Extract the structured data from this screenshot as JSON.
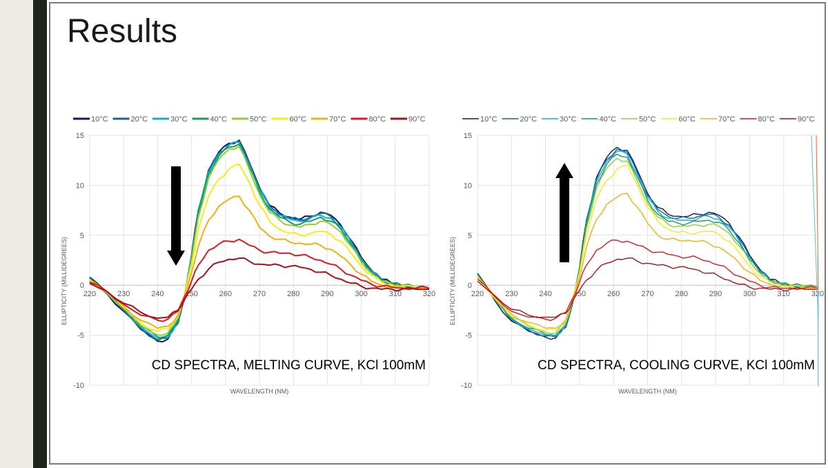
{
  "slide": {
    "title": "Results"
  },
  "chart_data": [
    {
      "type": "line",
      "id": "melting",
      "title": "",
      "annotation": "CD SPECTRA, MELTING CURVE, KCl 100mM",
      "arrow": "down",
      "xlabel": "WAVELENGTH (NM)",
      "ylabel": "ELLIPTICITY (MILLIDEGREES)",
      "xlim": [
        220,
        320
      ],
      "ylim": [
        -10,
        15
      ],
      "xticks": [
        220,
        230,
        240,
        250,
        260,
        270,
        280,
        290,
        300,
        310,
        320
      ],
      "yticks": [
        -10,
        -5,
        0,
        5,
        10,
        15
      ],
      "legend_position": "top",
      "x": [
        220,
        225,
        230,
        235,
        240,
        243,
        246,
        248,
        250,
        252,
        255,
        258,
        261,
        264,
        267,
        270,
        273,
        276,
        279,
        282,
        285,
        288,
        291,
        294,
        297,
        300,
        303,
        306,
        309,
        312,
        316,
        320
      ],
      "series": [
        {
          "name": "10°C",
          "color": "#0d1a5c",
          "values": [
            0.8,
            -0.8,
            -2.6,
            -4.4,
            -5.6,
            -5.4,
            -3.8,
            -1.0,
            3.0,
            7.5,
            11.5,
            13.3,
            14.2,
            14.5,
            12.3,
            9.8,
            8.0,
            7.2,
            6.8,
            6.6,
            6.9,
            7.3,
            7.0,
            6.0,
            4.5,
            2.8,
            1.5,
            0.6,
            0.2,
            0.0,
            -0.2,
            -0.3
          ]
        },
        {
          "name": "20°C",
          "color": "#1262a8",
          "values": [
            0.7,
            -0.8,
            -2.5,
            -4.3,
            -5.5,
            -5.3,
            -3.7,
            -1.0,
            2.9,
            7.4,
            11.4,
            13.2,
            14.1,
            14.4,
            12.2,
            9.7,
            7.9,
            7.1,
            6.7,
            6.5,
            6.8,
            7.2,
            6.9,
            5.9,
            4.4,
            2.7,
            1.4,
            0.6,
            0.2,
            0.0,
            -0.2,
            -0.3
          ]
        },
        {
          "name": "30°C",
          "color": "#12a9de",
          "values": [
            0.7,
            -0.7,
            -2.4,
            -4.2,
            -5.4,
            -5.2,
            -3.6,
            -0.9,
            2.8,
            7.3,
            11.3,
            13.1,
            14.0,
            14.3,
            12.1,
            9.6,
            7.8,
            7.0,
            6.6,
            6.4,
            6.7,
            7.0,
            6.7,
            5.8,
            4.3,
            2.6,
            1.4,
            0.5,
            0.2,
            0.0,
            -0.2,
            -0.3
          ]
        },
        {
          "name": "40°C",
          "color": "#14a050",
          "values": [
            0.6,
            -0.7,
            -2.4,
            -4.1,
            -5.2,
            -5.0,
            -3.5,
            -0.9,
            2.7,
            7.1,
            11.1,
            12.9,
            13.8,
            14.1,
            11.9,
            9.4,
            7.6,
            6.8,
            6.3,
            6.1,
            6.4,
            6.8,
            6.4,
            5.6,
            4.1,
            2.5,
            1.3,
            0.5,
            0.2,
            0.0,
            -0.2,
            -0.3
          ]
        },
        {
          "name": "50°C",
          "color": "#8ccf3a",
          "values": [
            0.6,
            -0.7,
            -2.3,
            -4.0,
            -5.0,
            -4.8,
            -3.3,
            -0.9,
            2.5,
            6.8,
            10.7,
            12.6,
            13.6,
            13.9,
            11.6,
            9.1,
            7.3,
            6.5,
            6.0,
            5.8,
            6.1,
            6.4,
            6.1,
            5.3,
            3.9,
            2.3,
            1.2,
            0.4,
            0.1,
            0.0,
            -0.2,
            -0.3
          ]
        },
        {
          "name": "60°C",
          "color": "#f6ec19",
          "values": [
            0.5,
            -0.7,
            -2.2,
            -3.8,
            -4.6,
            -4.4,
            -3.1,
            -0.9,
            2.0,
            5.6,
            8.9,
            10.6,
            11.6,
            12.1,
            10.3,
            8.0,
            6.4,
            5.6,
            5.2,
            5.0,
            5.2,
            5.4,
            5.1,
            4.4,
            3.2,
            1.9,
            1.0,
            0.3,
            0.0,
            -0.1,
            -0.2,
            -0.3
          ]
        },
        {
          "name": "70°C",
          "color": "#f4b00e",
          "values": [
            0.4,
            -0.7,
            -2.1,
            -3.5,
            -4.3,
            -4.1,
            -3.0,
            -1.0,
            1.3,
            3.9,
            6.5,
            7.9,
            8.6,
            8.9,
            7.5,
            5.8,
            4.9,
            4.6,
            4.3,
            4.2,
            4.1,
            4.0,
            3.6,
            2.9,
            2.0,
            1.1,
            0.4,
            0.0,
            -0.2,
            -0.2,
            -0.3,
            -0.3
          ]
        },
        {
          "name": "80°C",
          "color": "#e2171f",
          "values": [
            0.3,
            -0.6,
            -1.9,
            -3.0,
            -3.5,
            -3.4,
            -2.6,
            -1.1,
            0.4,
            2.0,
            3.5,
            4.1,
            4.4,
            4.6,
            4.0,
            3.5,
            3.3,
            3.2,
            3.2,
            3.0,
            2.8,
            2.5,
            2.1,
            1.6,
            1.0,
            0.5,
            0.1,
            -0.1,
            -0.2,
            -0.3,
            -0.3,
            -0.3
          ]
        },
        {
          "name": "90°C",
          "color": "#a8101a",
          "values": [
            0.2,
            -0.6,
            -1.8,
            -2.7,
            -3.3,
            -3.2,
            -2.5,
            -1.4,
            -0.4,
            0.6,
            1.6,
            2.3,
            2.6,
            2.7,
            2.4,
            2.1,
            2.0,
            2.0,
            1.9,
            1.8,
            1.6,
            1.3,
            1.0,
            0.6,
            0.2,
            -0.1,
            -0.3,
            -0.4,
            -0.4,
            -0.4,
            -0.4,
            -0.4
          ]
        }
      ]
    },
    {
      "type": "line",
      "id": "cooling",
      "title": "",
      "annotation": "CD SPECTRA, COOLING CURVE, KCl 100mM",
      "arrow": "up",
      "xlabel": "WAVELENGTH (NM)",
      "ylabel": "ELLIPTICITY (MILLIDEGREES)",
      "xlim": [
        220,
        320
      ],
      "ylim": [
        -10,
        15
      ],
      "xticks": [
        220,
        230,
        240,
        250,
        260,
        270,
        280,
        290,
        300,
        310,
        320
      ],
      "yticks": [
        -10,
        -5,
        0,
        5,
        10,
        15
      ],
      "legend_position": "top",
      "x": [
        220,
        225,
        230,
        235,
        240,
        243,
        246,
        248,
        250,
        252,
        255,
        258,
        261,
        264,
        267,
        270,
        273,
        276,
        279,
        282,
        285,
        288,
        291,
        294,
        297,
        300,
        303,
        306,
        309,
        312,
        316,
        320
      ],
      "series": [
        {
          "name": "10°C",
          "color": "#0d1a5c",
          "values": [
            1.2,
            -1.5,
            -3.6,
            -4.6,
            -5.2,
            -5.3,
            -4.2,
            -1.8,
            1.8,
            6.5,
            10.8,
            12.8,
            13.8,
            13.5,
            11.5,
            9.2,
            7.8,
            7.1,
            6.9,
            6.9,
            7.1,
            7.3,
            7.0,
            6.2,
            4.8,
            3.0,
            1.6,
            0.6,
            0.2,
            0.0,
            -0.1,
            -0.2
          ]
        },
        {
          "name": "20°C",
          "color": "#1262a8",
          "values": [
            1.1,
            -1.4,
            -3.5,
            -4.5,
            -5.1,
            -5.2,
            -4.1,
            -1.7,
            1.7,
            6.4,
            10.6,
            12.6,
            13.6,
            13.3,
            11.3,
            9.0,
            7.6,
            6.9,
            6.7,
            6.7,
            6.9,
            7.1,
            6.8,
            6.0,
            4.6,
            2.9,
            1.5,
            0.6,
            0.2,
            0.0,
            -0.1,
            -0.2
          ]
        },
        {
          "name": "30°C",
          "color": "#12a9de",
          "values": [
            1.1,
            -1.4,
            -3.4,
            -4.4,
            -5.0,
            -5.1,
            -4.0,
            -1.7,
            1.6,
            6.2,
            10.4,
            12.4,
            13.4,
            13.1,
            11.1,
            8.8,
            7.4,
            6.7,
            6.5,
            6.5,
            6.7,
            6.9,
            6.6,
            5.8,
            4.4,
            2.8,
            1.4,
            0.5,
            0.2,
            0.0,
            -0.1,
            -0.2
          ]
        },
        {
          "name": "40°C",
          "color": "#14a050",
          "values": [
            1.0,
            -1.4,
            -3.3,
            -4.3,
            -4.9,
            -5.0,
            -3.9,
            -1.6,
            1.5,
            6.0,
            10.1,
            12.1,
            13.1,
            12.8,
            10.8,
            8.5,
            7.1,
            6.4,
            6.2,
            6.2,
            6.4,
            6.5,
            6.3,
            5.5,
            4.2,
            2.6,
            1.3,
            0.5,
            0.1,
            0.0,
            -0.1,
            -0.2
          ]
        },
        {
          "name": "50°C",
          "color": "#8ccf3a",
          "values": [
            1.0,
            -1.3,
            -3.2,
            -4.1,
            -4.7,
            -4.8,
            -3.7,
            -1.5,
            1.4,
            5.7,
            9.7,
            11.7,
            12.7,
            12.4,
            10.4,
            8.2,
            6.8,
            6.1,
            5.9,
            5.9,
            6.0,
            6.1,
            5.9,
            5.2,
            3.9,
            2.4,
            1.2,
            0.4,
            0.1,
            0.0,
            -0.1,
            -0.2
          ]
        },
        {
          "name": "60°C",
          "color": "#f6ec19",
          "values": [
            0.9,
            -1.3,
            -3.1,
            -3.9,
            -4.5,
            -4.5,
            -3.5,
            -1.4,
            1.2,
            5.0,
            8.6,
            10.5,
            11.6,
            12.0,
            10.0,
            7.8,
            6.4,
            5.6,
            5.3,
            5.2,
            5.3,
            5.4,
            5.1,
            4.4,
            3.2,
            1.9,
            0.9,
            0.3,
            0.0,
            -0.1,
            -0.2,
            -0.2
          ]
        },
        {
          "name": "70°C",
          "color": "#f4b00e",
          "values": [
            0.8,
            -1.2,
            -2.9,
            -3.7,
            -4.3,
            -4.3,
            -3.4,
            -1.5,
            0.8,
            3.8,
            6.6,
            8.1,
            8.8,
            9.2,
            7.8,
            6.2,
            5.0,
            4.6,
            4.5,
            4.5,
            4.4,
            4.2,
            3.8,
            3.1,
            2.2,
            1.3,
            0.5,
            0.1,
            -0.1,
            -0.2,
            -0.2,
            -0.2
          ]
        },
        {
          "name": "80°C",
          "color": "#e2171f",
          "values": [
            0.6,
            -1.1,
            -2.6,
            -3.2,
            -3.4,
            -3.3,
            -2.7,
            -1.3,
            0.3,
            2.0,
            3.5,
            4.2,
            4.5,
            4.4,
            4.0,
            3.6,
            3.3,
            3.1,
            2.9,
            2.8,
            2.7,
            2.4,
            2.0,
            1.5,
            0.9,
            0.4,
            0.0,
            -0.2,
            -0.3,
            -0.3,
            -0.3,
            -0.3
          ]
        },
        {
          "name": "90°C",
          "color": "#a8101a",
          "values": [
            0.4,
            -1.0,
            -2.4,
            -3.0,
            -3.2,
            -3.2,
            -2.8,
            -1.6,
            -0.5,
            0.5,
            1.5,
            2.2,
            2.6,
            2.7,
            2.4,
            2.2,
            2.0,
            1.9,
            1.8,
            1.7,
            1.5,
            1.2,
            0.9,
            0.5,
            0.1,
            -0.2,
            -0.3,
            -0.4,
            -0.4,
            -0.4,
            -0.4,
            -0.4
          ]
        }
      ]
    }
  ]
}
